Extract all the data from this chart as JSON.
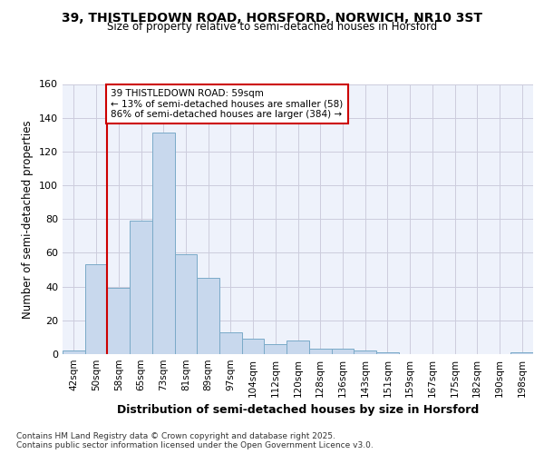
{
  "title1": "39, THISTLEDOWN ROAD, HORSFORD, NORWICH, NR10 3ST",
  "title2": "Size of property relative to semi-detached houses in Horsford",
  "xlabel": "Distribution of semi-detached houses by size in Horsford",
  "ylabel": "Number of semi-detached properties",
  "categories": [
    "42sqm",
    "50sqm",
    "58sqm",
    "65sqm",
    "73sqm",
    "81sqm",
    "89sqm",
    "97sqm",
    "104sqm",
    "112sqm",
    "120sqm",
    "128sqm",
    "136sqm",
    "143sqm",
    "151sqm",
    "159sqm",
    "167sqm",
    "175sqm",
    "182sqm",
    "190sqm",
    "198sqm"
  ],
  "values": [
    2,
    53,
    39,
    79,
    131,
    59,
    45,
    13,
    9,
    6,
    8,
    3,
    3,
    2,
    1,
    0,
    0,
    0,
    0,
    0,
    1
  ],
  "bar_color": "#c8d8ed",
  "bar_edge_color": "#7aaac8",
  "property_line_index": 2,
  "property_line_color": "#cc0000",
  "annotation_text": "39 THISTLEDOWN ROAD: 59sqm\n← 13% of semi-detached houses are smaller (58)\n86% of semi-detached houses are larger (384) →",
  "annotation_box_edgecolor": "#cc0000",
  "ylim": [
    0,
    160
  ],
  "yticks": [
    0,
    20,
    40,
    60,
    80,
    100,
    120,
    140,
    160
  ],
  "footnote": "Contains HM Land Registry data © Crown copyright and database right 2025.\nContains public sector information licensed under the Open Government Licence v3.0.",
  "bg_color": "#ffffff",
  "plot_bg_color": "#eef2fb",
  "grid_color": "#ccccdd"
}
